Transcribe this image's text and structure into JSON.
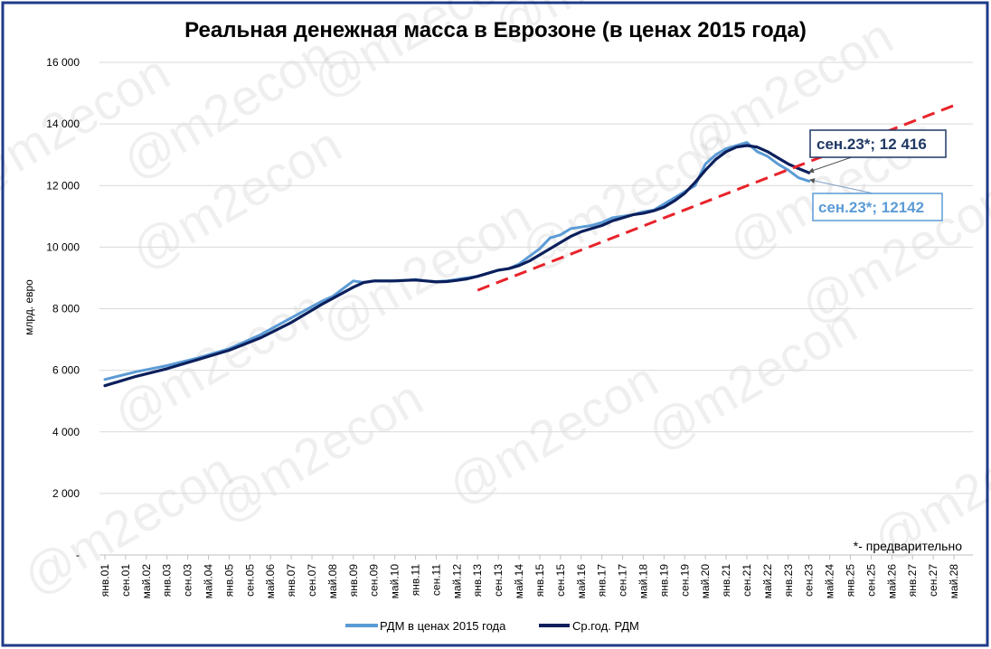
{
  "chart_data": {
    "type": "line",
    "title": "Реальная денежная масса в Еврозоне (в ценах 2015 года)",
    "ylabel": "млрд. евро",
    "xlabel": "",
    "ylim": [
      0,
      16000
    ],
    "grid": true,
    "legend_position": "bottom",
    "y_ticks": [
      {
        "value": 0,
        "label": "-"
      },
      {
        "value": 2000,
        "label": "2 000"
      },
      {
        "value": 4000,
        "label": "4 000"
      },
      {
        "value": 6000,
        "label": "6 000"
      },
      {
        "value": 8000,
        "label": "8 000"
      },
      {
        "value": 10000,
        "label": "10 000"
      },
      {
        "value": 12000,
        "label": "12 000"
      },
      {
        "value": 14000,
        "label": "14 000"
      },
      {
        "value": 16000,
        "label": "16 000"
      }
    ],
    "x_ticks": [
      "янв.01",
      "сен.01",
      "май.02",
      "янв.03",
      "сен.03",
      "май.04",
      "янв.05",
      "сен.05",
      "май.06",
      "янв.07",
      "сен.07",
      "май.08",
      "янв.09",
      "сен.09",
      "май.10",
      "янв.11",
      "сен.11",
      "май.12",
      "янв.13",
      "сен.13",
      "май.14",
      "янв.15",
      "сен.15",
      "май.16",
      "янв.17",
      "сен.17",
      "май.18",
      "янв.19",
      "сен.19",
      "май.20",
      "янв.21",
      "сен.21",
      "май.22",
      "янв.23",
      "сен.23",
      "май.24",
      "янв.25",
      "сен.25",
      "май.26",
      "янв.27",
      "сен.27",
      "май.28"
    ],
    "series": [
      {
        "name": "РДМ в ценах 2015 года",
        "color": "#5b9bd5",
        "x": [
          "янв.01",
          "янв.02",
          "янв.03",
          "янв.04",
          "янв.05",
          "янв.06",
          "янв.07",
          "янв.08",
          "май.08",
          "янв.09",
          "май.09",
          "сен.09",
          "янв.10",
          "май.10",
          "сен.10",
          "янв.11",
          "май.11",
          "сен.11",
          "янв.12",
          "май.12",
          "сен.12",
          "янв.13",
          "май.13",
          "сен.13",
          "янв.14",
          "май.14",
          "сен.14",
          "янв.15",
          "май.15",
          "сен.15",
          "янв.16",
          "май.16",
          "сен.16",
          "янв.17",
          "май.17",
          "сен.17",
          "янв.18",
          "май.18",
          "сен.18",
          "янв.19",
          "май.19",
          "сен.19",
          "янв.20",
          "май.20",
          "сен.20",
          "янв.21",
          "май.21",
          "сен.21",
          "янв.22",
          "май.22",
          "сен.22",
          "янв.23",
          "май.23",
          "сен.23"
        ],
        "values": [
          5700,
          5950,
          6150,
          6400,
          6700,
          7150,
          7700,
          8250,
          8400,
          8900,
          8850,
          8900,
          8900,
          8900,
          8920,
          8950,
          8900,
          8880,
          8900,
          8950,
          9000,
          9050,
          9150,
          9250,
          9300,
          9450,
          9700,
          9950,
          10300,
          10400,
          10600,
          10650,
          10700,
          10800,
          10950,
          11000,
          11050,
          11150,
          11200,
          11400,
          11600,
          11800,
          12000,
          12700,
          13000,
          13200,
          13300,
          13400,
          13100,
          12950,
          12700,
          12500,
          12250,
          12142
        ]
      },
      {
        "name": "Ср.год. РДМ",
        "color": "#0b1f5c",
        "x": [
          "янв.01",
          "янв.02",
          "янв.03",
          "янв.04",
          "янв.05",
          "янв.06",
          "янв.07",
          "янв.08",
          "янв.09",
          "май.09",
          "сен.09",
          "янв.10",
          "май.10",
          "сен.10",
          "янв.11",
          "май.11",
          "сен.11",
          "янв.12",
          "май.12",
          "сен.12",
          "янв.13",
          "май.13",
          "сен.13",
          "янв.14",
          "май.14",
          "сен.14",
          "янв.15",
          "май.15",
          "сен.15",
          "янв.16",
          "май.16",
          "сен.16",
          "янв.17",
          "май.17",
          "сен.17",
          "янв.18",
          "май.18",
          "сен.18",
          "янв.19",
          "май.19",
          "сен.19",
          "янв.20",
          "май.20",
          "сен.20",
          "янв.21",
          "май.21",
          "сен.21",
          "янв.22",
          "май.22",
          "сен.22",
          "янв.23",
          "май.23",
          "сен.23"
        ],
        "values": [
          5500,
          5800,
          6050,
          6350,
          6650,
          7050,
          7550,
          8150,
          8700,
          8850,
          8900,
          8900,
          8900,
          8920,
          8930,
          8900,
          8870,
          8880,
          8920,
          8970,
          9050,
          9150,
          9250,
          9300,
          9400,
          9550,
          9750,
          9950,
          10150,
          10350,
          10500,
          10600,
          10700,
          10850,
          10950,
          11050,
          11100,
          11180,
          11300,
          11500,
          11750,
          12100,
          12500,
          12850,
          13100,
          13250,
          13300,
          13250,
          13100,
          12900,
          12700,
          12550,
          12416
        ]
      },
      {
        "name": "trend",
        "color": "#e8232a",
        "dashed": true,
        "x": [
          "янв.13",
          "май.28"
        ],
        "values": [
          8600,
          14600
        ]
      }
    ],
    "annotations": [
      {
        "text": "сен.23*;  12 416",
        "series": "Ср.год. РДМ",
        "x": "сен.23",
        "value": 12416,
        "color": "#1f3864"
      },
      {
        "text": "сен.23*; 12142",
        "series": "РДМ в ценах 2015 года",
        "x": "сен.23",
        "value": 12142,
        "color": "#5b9bd5"
      }
    ],
    "footnote": "*- предварительно",
    "watermark": "@m2econ"
  }
}
